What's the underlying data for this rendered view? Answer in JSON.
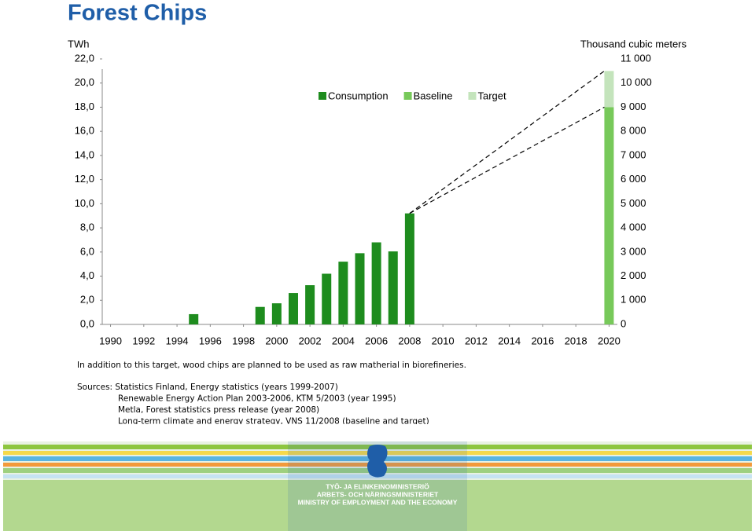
{
  "chart_data": {
    "type": "bar",
    "title": "Forest Chips",
    "y_label": "TWh",
    "y2_label": "Thousand cubic meters",
    "x": [
      1995,
      1999,
      2000,
      2001,
      2002,
      2003,
      2004,
      2005,
      2006,
      2007,
      2008,
      2020
    ],
    "series": [
      {
        "name": "Consumption",
        "color": "#1e8c1e",
        "values": [
          0.85,
          1.45,
          1.75,
          2.6,
          3.25,
          4.2,
          5.2,
          5.9,
          6.8,
          6.05,
          9.2,
          null
        ]
      },
      {
        "name": "Baseline",
        "color": "#77c95a",
        "values": [
          null,
          null,
          null,
          null,
          null,
          null,
          null,
          null,
          null,
          null,
          null,
          18
        ]
      },
      {
        "name": "Target",
        "color": "#c4e4bc",
        "values": [
          null,
          null,
          null,
          null,
          null,
          null,
          null,
          null,
          null,
          null,
          null,
          3
        ]
      }
    ],
    "stacked": true,
    "xlim": [
      1989.5,
      2020.5
    ],
    "xticks": [
      1990,
      1992,
      1994,
      1996,
      1998,
      2000,
      2002,
      2004,
      2006,
      2008,
      2010,
      2012,
      2014,
      2016,
      2018,
      2020
    ],
    "ylim": [
      0,
      22
    ],
    "yticks": [
      {
        "value": 0,
        "label": "0,0"
      },
      {
        "value": 2,
        "label": "2,0"
      },
      {
        "value": 4,
        "label": "4,0"
      },
      {
        "value": 6,
        "label": "6,0"
      },
      {
        "value": 8,
        "label": "8,0"
      },
      {
        "value": 10,
        "label": "10,0"
      },
      {
        "value": 12,
        "label": "12,0"
      },
      {
        "value": 14,
        "label": "14,0"
      },
      {
        "value": 16,
        "label": "16,0"
      },
      {
        "value": 18,
        "label": "18,0"
      },
      {
        "value": 20,
        "label": "20,0"
      },
      {
        "value": 22,
        "label": "22,0"
      }
    ],
    "y2lim": [
      0,
      11000
    ],
    "y2ticks": [
      0,
      {
        "value": 1000,
        "label": "1 000"
      },
      {
        "value": 2000,
        "label": "2 000"
      },
      {
        "value": 3000,
        "label": "3 000"
      },
      {
        "value": 4000,
        "label": "4 000"
      },
      {
        "value": 5000,
        "label": "5 000"
      },
      {
        "value": 6000,
        "label": "6 000"
      },
      {
        "value": 7000,
        "label": "7 000"
      },
      {
        "value": 8000,
        "label": "8 000"
      },
      {
        "value": 9000,
        "label": "9 000"
      },
      {
        "value": 10000,
        "label": "10 000"
      },
      {
        "value": 11000,
        "label": "11 000"
      }
    ],
    "grid": false,
    "legend": "top",
    "note": "In addition to this target, wood chips are planned to be used as raw matherial in biorefineries.",
    "sources": [
      "Sources: Statistics Finland, Energy statistics (years 1999-2007)",
      "Renewable Energy Action Plan 2003-2006, KTM 5/2003 (year 1995)",
      "Metla, Forest statistics press release (year 2008)",
      "Long-term climate and energy strategy, VNS 11/2008 (baseline and target)"
    ]
  },
  "footer": {
    "lines": [
      "TYÖ- JA ELINKEINOMINISTERIÖ",
      "ARBETS- OCH NÄRINGSMINISTERIET",
      "MINISTRY OF EMPLOYMENT AND THE ECONOMY"
    ]
  }
}
